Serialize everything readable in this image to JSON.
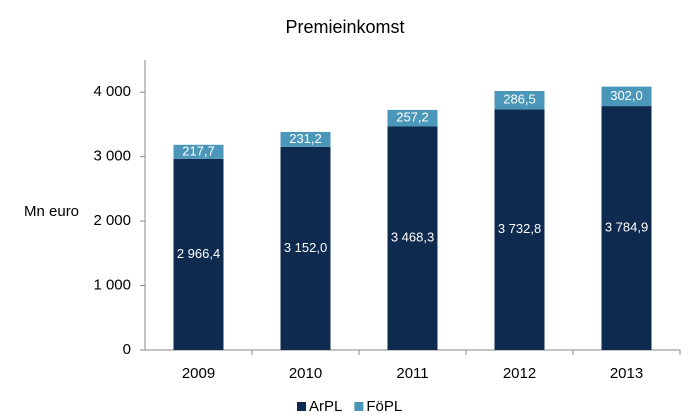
{
  "chart_data": {
    "type": "stacked-bar",
    "title": "Premieinkomst",
    "y_label": "Mn euro",
    "categories": [
      "2009",
      "2010",
      "2011",
      "2012",
      "2013"
    ],
    "series": [
      {
        "name": "ArPL",
        "color": "#0e2a4f",
        "values": [
          2966.4,
          3152.0,
          3468.3,
          3732.8,
          3784.9
        ],
        "value_labels": [
          "2 966,4",
          "3 152,0",
          "3 468,3",
          "3 732,8",
          "3 784,9"
        ]
      },
      {
        "name": "FöPL",
        "color": "#4b97b9",
        "values": [
          217.7,
          231.2,
          257.2,
          286.5,
          302.0
        ],
        "value_labels": [
          "217,7",
          "231,2",
          "257,2",
          "286,5",
          "302,0"
        ]
      }
    ],
    "ylim": [
      0,
      4500
    ],
    "yticks": [
      0,
      {
        "value": 1000,
        "label": "1 000"
      },
      {
        "value": 2000,
        "label": "2 000"
      },
      {
        "value": 3000,
        "label": "3 000"
      },
      {
        "value": 4000,
        "label": "4 000"
      }
    ],
    "grid": false,
    "legend": "bottom"
  }
}
